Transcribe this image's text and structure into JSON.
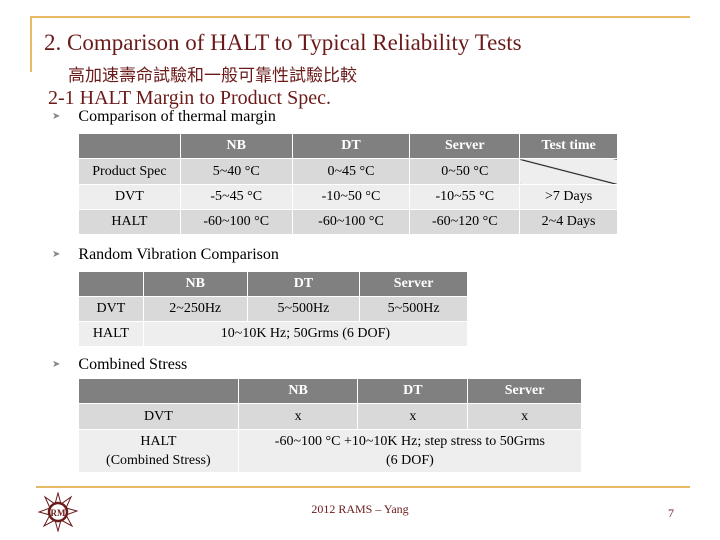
{
  "title": "2. Comparison of HALT to Typical Reliability Tests",
  "subtitle": "高加速壽命試驗和一般可靠性試驗比較",
  "section": "2-1 HALT Margin to Product Spec.",
  "bullets": [
    "Comparison of thermal margin",
    "Random Vibration Comparison",
    "Combined Stress"
  ],
  "thermal": {
    "headers": [
      "",
      "NB",
      "DT",
      "Server",
      "Test time"
    ],
    "rows": [
      [
        "Product Spec",
        "5~40 °C",
        "0~45 °C",
        "0~50 °C",
        ""
      ],
      [
        "DVT",
        "-5~45 °C",
        "-10~50 °C",
        "-10~55 °C",
        ">7 Days"
      ],
      [
        "HALT",
        "-60~100 °C",
        "-60~100 °C",
        "-60~120 °C",
        "2~4 Days"
      ]
    ]
  },
  "vibration": {
    "headers": [
      "",
      "NB",
      "DT",
      "Server"
    ],
    "rows": [
      [
        "DVT",
        "2~250Hz",
        "5~500Hz",
        "5~500Hz"
      ],
      [
        "HALT",
        "10~10K Hz; 50Grms (6 DOF)"
      ]
    ]
  },
  "combined": {
    "headers": [
      "",
      "NB",
      "DT",
      "Server"
    ],
    "dvt": [
      "DVT",
      "x",
      "x",
      "x"
    ],
    "halt_label_1": "HALT",
    "halt_label_2": "(Combined Stress)",
    "halt_value_1": "-60~100 °C +10~10K Hz;  step stress to 50Grms",
    "halt_value_2": "(6 DOF)"
  },
  "footer": "2012 RAMS – Yang",
  "page_number": "7",
  "logo_text": "RAMS"
}
